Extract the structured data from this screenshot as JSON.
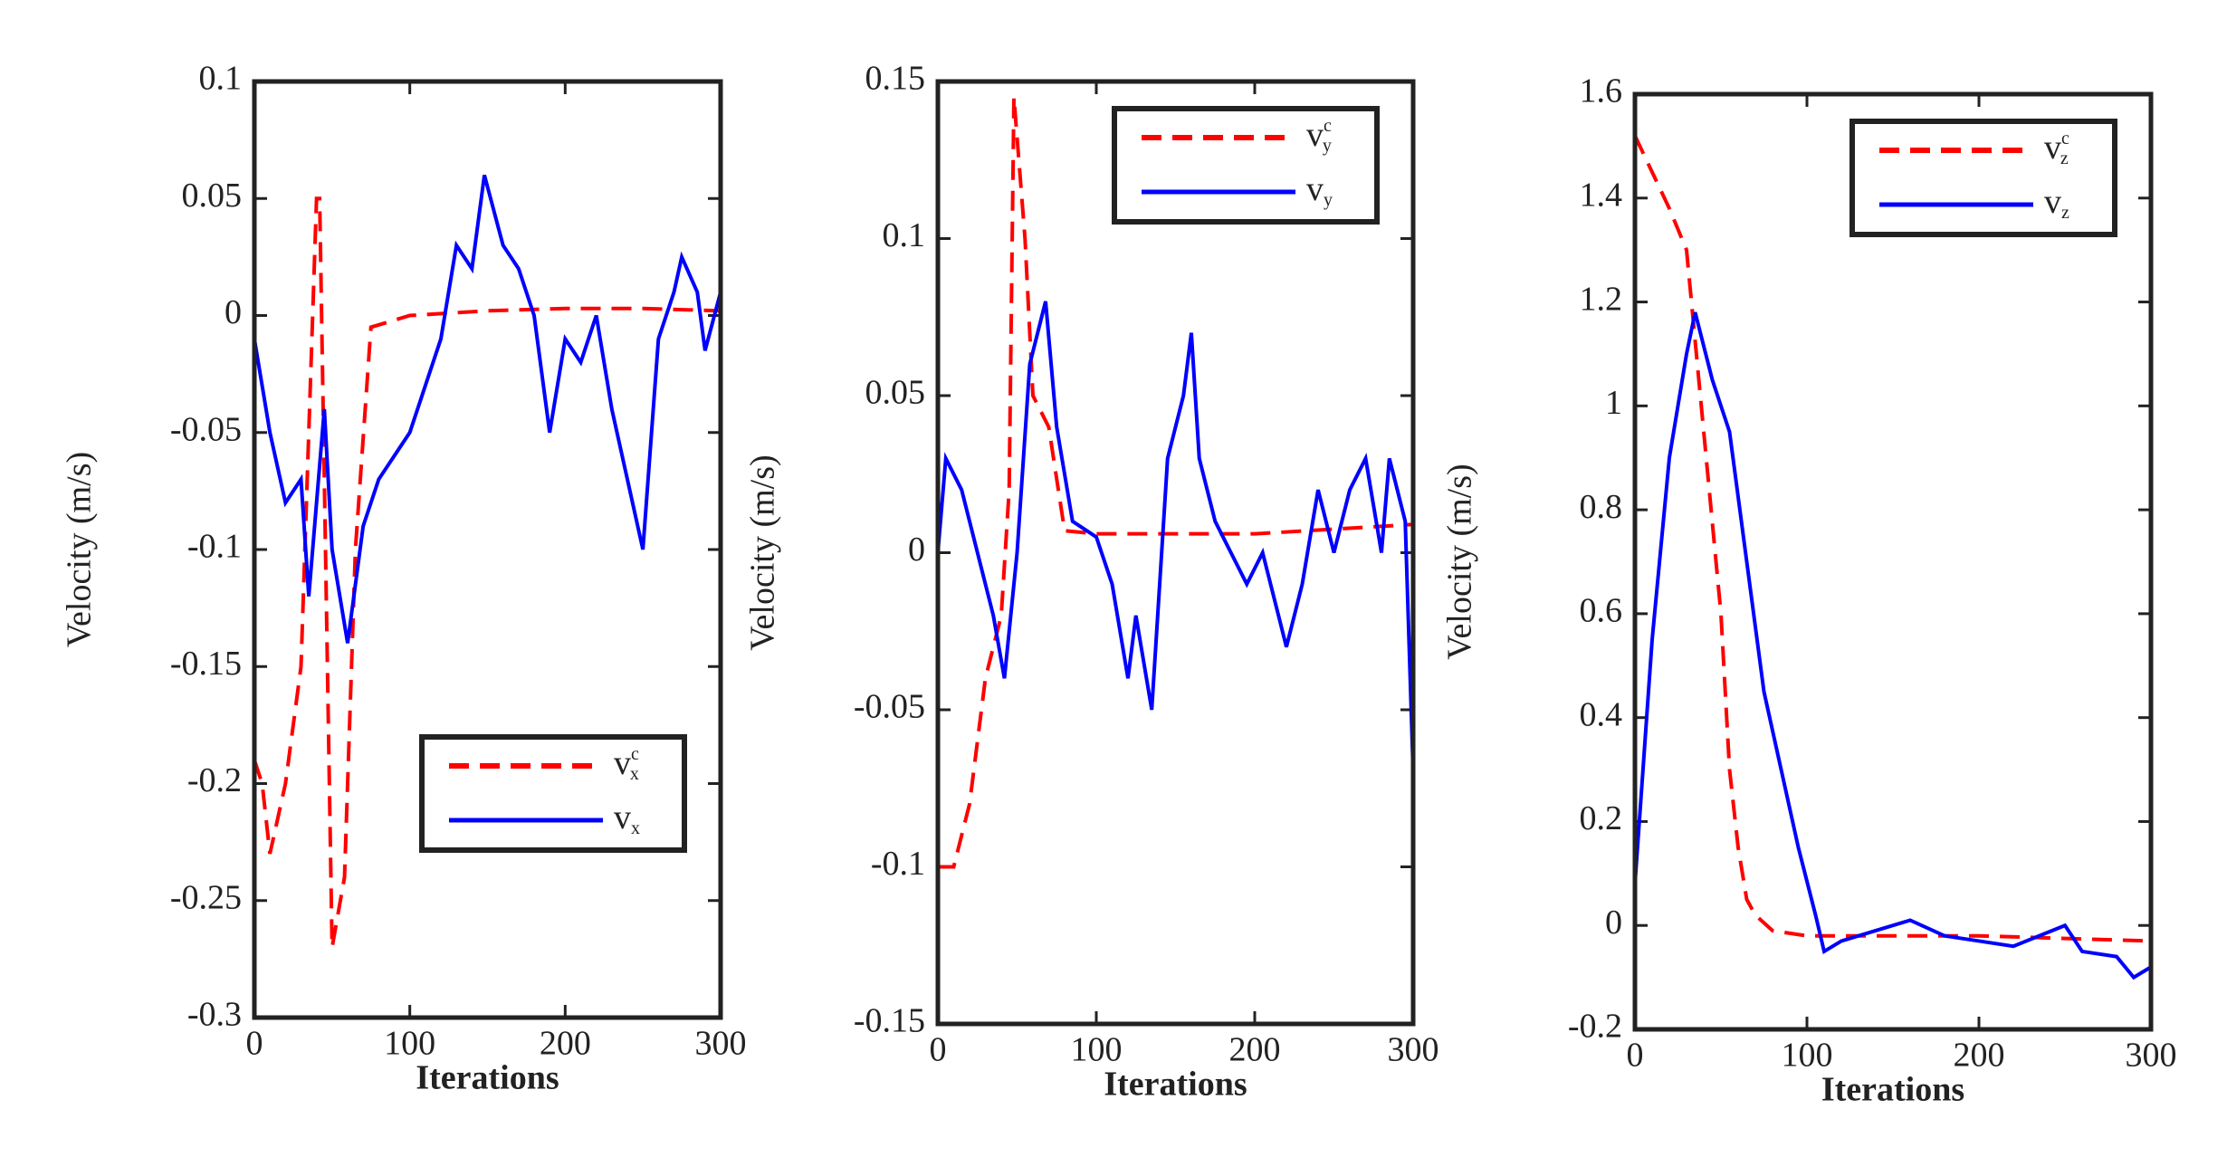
{
  "chart_data": [
    {
      "type": "line",
      "xlabel": "Iterations",
      "ylabel": "Velocity (m/s)",
      "xlim": [
        0,
        300
      ],
      "xticks": [
        0,
        100,
        200,
        300
      ],
      "ylim": [
        -0.3,
        0.1
      ],
      "yticks": [
        -0.3,
        -0.25,
        -0.2,
        -0.15,
        -0.1,
        -0.05,
        0,
        0.05,
        0.1
      ],
      "grid": false,
      "legend": "lower-right",
      "series": [
        {
          "name": "v",
          "superscript": "c",
          "subscript": "x",
          "color": "#ff0000",
          "dash": true,
          "x": [
            0,
            5,
            10,
            20,
            30,
            40,
            42,
            50,
            58,
            65,
            75,
            100,
            150,
            200,
            250,
            300
          ],
          "values": [
            -0.19,
            -0.2,
            -0.23,
            -0.2,
            -0.15,
            0.05,
            0.05,
            -0.27,
            -0.24,
            -0.1,
            -0.005,
            0,
            0.002,
            0.003,
            0.003,
            0.002
          ]
        },
        {
          "name": "v",
          "subscript": "x",
          "color": "#0000ff",
          "dash": false,
          "x": [
            0,
            10,
            20,
            30,
            35,
            45,
            50,
            60,
            70,
            80,
            90,
            100,
            110,
            120,
            130,
            140,
            148,
            160,
            170,
            180,
            190,
            200,
            210,
            220,
            230,
            240,
            250,
            260,
            270,
            275,
            285,
            290,
            300
          ],
          "values": [
            -0.01,
            -0.05,
            -0.08,
            -0.07,
            -0.12,
            -0.04,
            -0.1,
            -0.14,
            -0.09,
            -0.07,
            -0.06,
            -0.05,
            -0.03,
            -0.01,
            0.03,
            0.02,
            0.06,
            0.03,
            0.02,
            0.0,
            -0.05,
            -0.01,
            -0.02,
            0.0,
            -0.04,
            -0.07,
            -0.1,
            -0.01,
            0.01,
            0.025,
            0.01,
            -0.015,
            0.01
          ]
        }
      ]
    },
    {
      "type": "line",
      "xlabel": "Iterations",
      "ylabel": "Velocity (m/s)",
      "xlim": [
        0,
        300
      ],
      "xticks": [
        0,
        100,
        200,
        300
      ],
      "ylim": [
        -0.15,
        0.15
      ],
      "yticks": [
        -0.15,
        -0.1,
        -0.05,
        0,
        0.05,
        0.1,
        0.15
      ],
      "grid": false,
      "legend": "upper-right",
      "series": [
        {
          "name": "v",
          "superscript": "c",
          "subscript": "y",
          "color": "#ff0000",
          "dash": true,
          "x": [
            0,
            10,
            20,
            30,
            40,
            45,
            48,
            55,
            60,
            70,
            80,
            100,
            200,
            300
          ],
          "values": [
            -0.1,
            -0.1,
            -0.08,
            -0.04,
            -0.02,
            0.02,
            0.145,
            0.1,
            0.05,
            0.04,
            0.007,
            0.006,
            0.006,
            0.009
          ]
        },
        {
          "name": "v",
          "subscript": "y",
          "color": "#0000ff",
          "dash": false,
          "x": [
            0,
            5,
            15,
            25,
            35,
            42,
            50,
            58,
            68,
            75,
            85,
            100,
            110,
            120,
            125,
            135,
            145,
            155,
            160,
            165,
            175,
            185,
            195,
            205,
            215,
            220,
            230,
            240,
            250,
            260,
            270,
            280,
            285,
            295,
            300
          ],
          "values": [
            0.0,
            0.03,
            0.02,
            0.0,
            -0.02,
            -0.04,
            0.0,
            0.06,
            0.08,
            0.04,
            0.01,
            0.005,
            -0.01,
            -0.04,
            -0.02,
            -0.05,
            0.03,
            0.05,
            0.07,
            0.03,
            0.01,
            0.0,
            -0.01,
            0.0,
            -0.02,
            -0.03,
            -0.01,
            0.02,
            0.0,
            0.02,
            0.03,
            0.0,
            0.03,
            0.01,
            -0.07
          ]
        }
      ]
    },
    {
      "type": "line",
      "xlabel": "Iterations",
      "ylabel": "Velocity (m/s)",
      "xlim": [
        0,
        300
      ],
      "xticks": [
        0,
        100,
        200,
        300
      ],
      "ylim": [
        -0.2,
        1.6
      ],
      "yticks": [
        -0.2,
        0,
        0.2,
        0.4,
        0.6,
        0.8,
        1,
        1.2,
        1.4,
        1.6
      ],
      "grid": false,
      "legend": "upper-right",
      "series": [
        {
          "name": "v",
          "superscript": "c",
          "subscript": "z",
          "color": "#ff0000",
          "dash": true,
          "x": [
            0,
            10,
            20,
            30,
            40,
            50,
            55,
            60,
            65,
            70,
            80,
            100,
            200,
            300
          ],
          "values": [
            1.52,
            1.45,
            1.38,
            1.3,
            0.95,
            0.6,
            0.3,
            0.15,
            0.05,
            0.02,
            -0.01,
            -0.02,
            -0.02,
            -0.03
          ]
        },
        {
          "name": "v",
          "subscript": "z",
          "color": "#0000ff",
          "dash": false,
          "x": [
            0,
            10,
            20,
            30,
            35,
            45,
            55,
            65,
            75,
            85,
            95,
            105,
            110,
            120,
            140,
            160,
            180,
            200,
            220,
            250,
            260,
            280,
            290,
            300
          ],
          "values": [
            0.08,
            0.55,
            0.9,
            1.1,
            1.18,
            1.05,
            0.95,
            0.7,
            0.45,
            0.3,
            0.15,
            0.02,
            -0.05,
            -0.03,
            -0.01,
            0.01,
            -0.02,
            -0.03,
            -0.04,
            0.0,
            -0.05,
            -0.06,
            -0.1,
            -0.08
          ]
        }
      ]
    }
  ]
}
